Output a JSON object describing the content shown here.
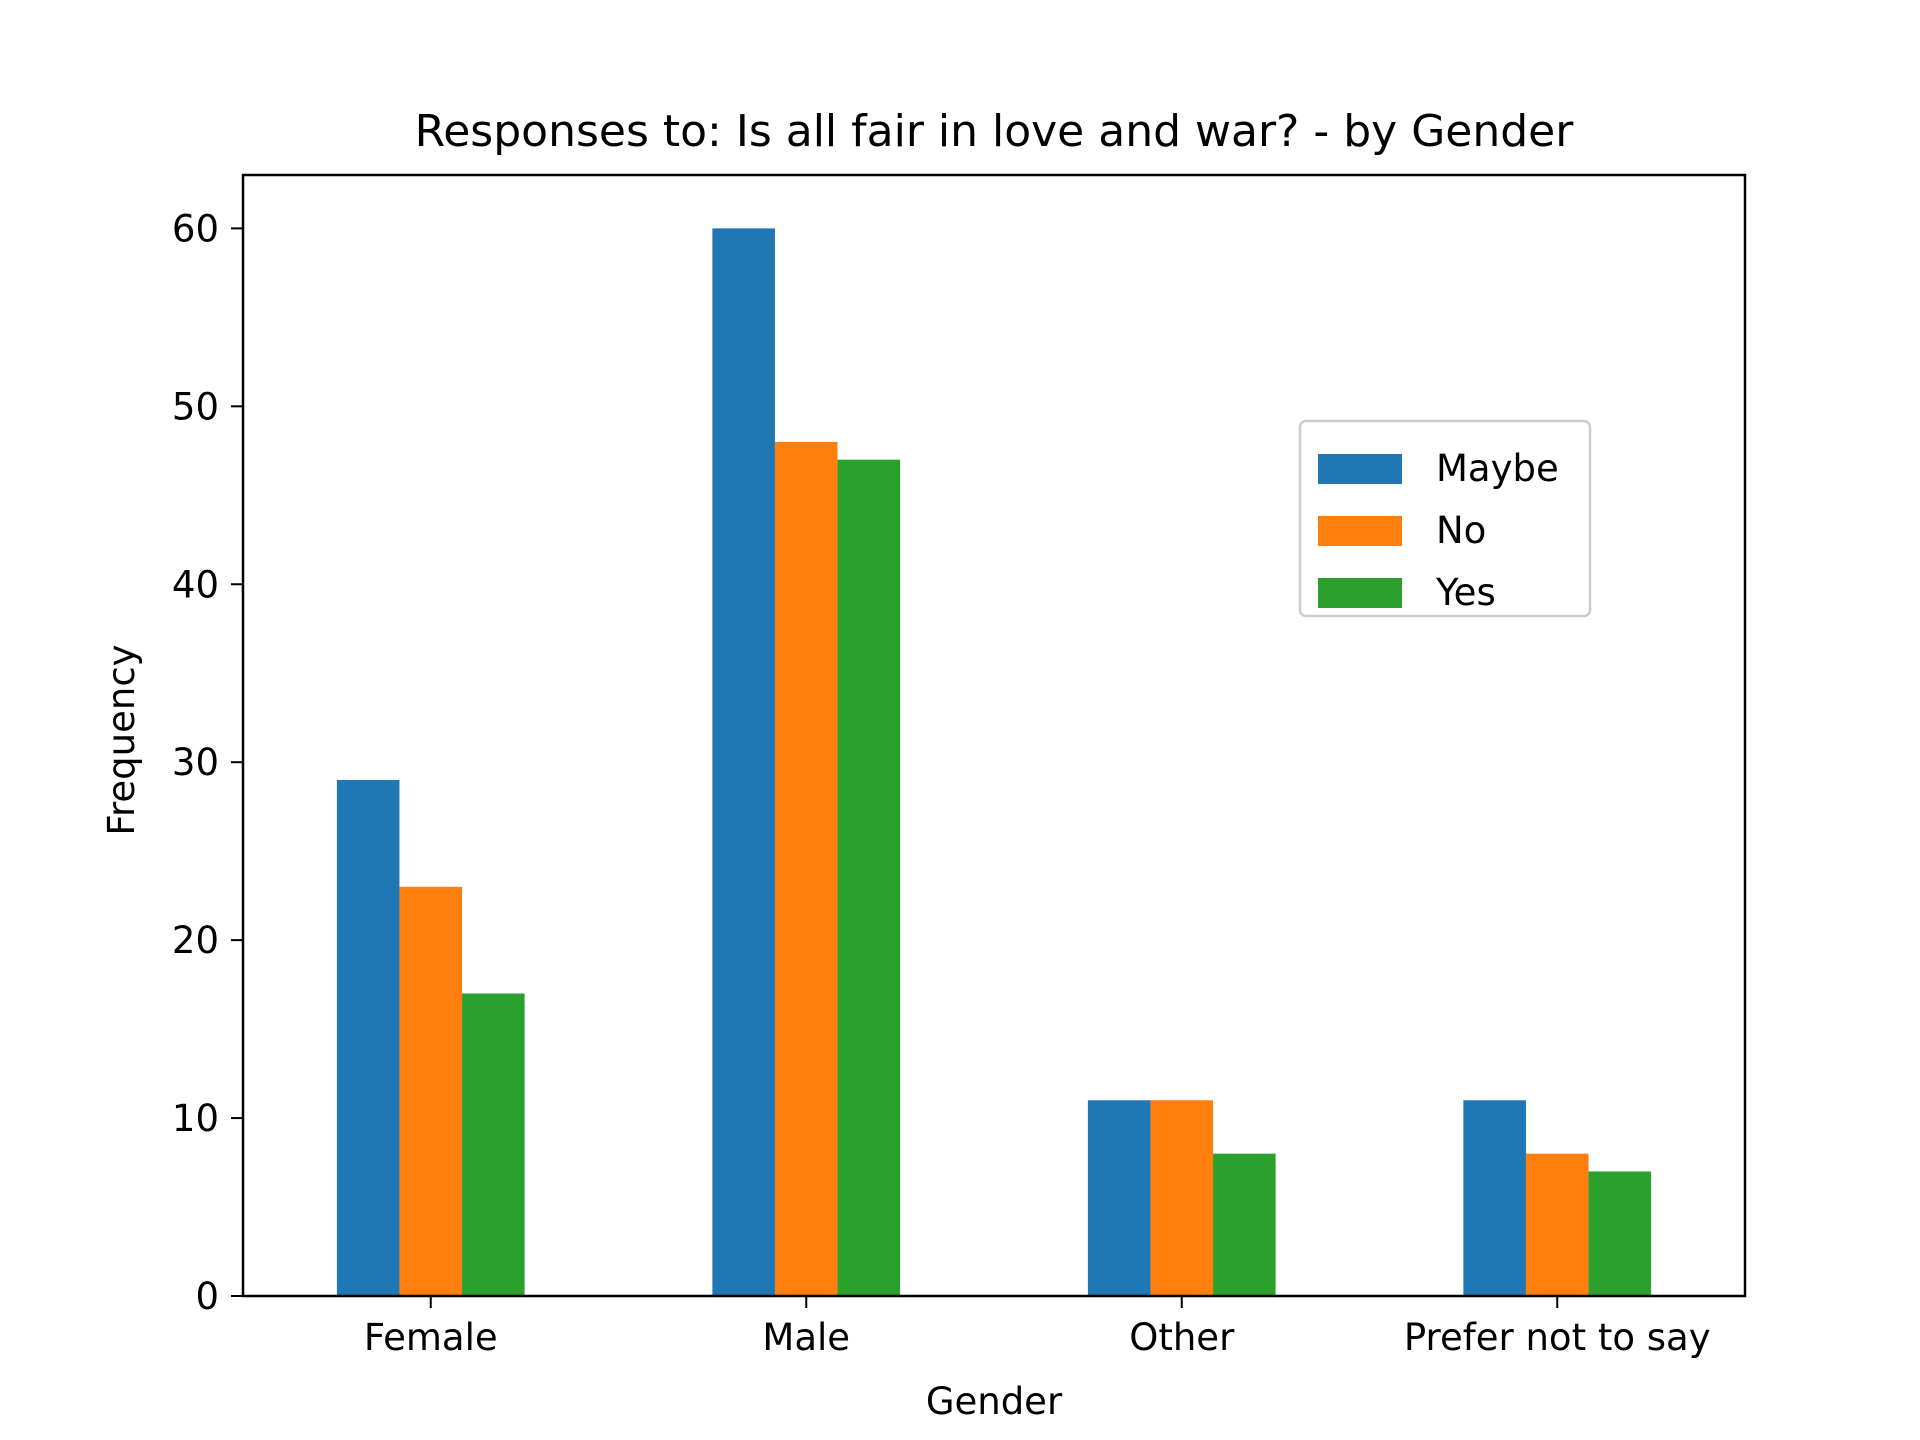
{
  "chart_data": {
    "type": "bar",
    "title": "Responses to: Is all fair in love and war? - by Gender",
    "xlabel": "Gender",
    "ylabel": "Frequency",
    "categories": [
      "Female",
      "Male",
      "Other",
      "Prefer not to say"
    ],
    "series": [
      {
        "name": "Maybe",
        "color": "#1f77b4",
        "values": [
          29,
          60,
          11,
          11
        ]
      },
      {
        "name": "No",
        "color": "#ff7f0e",
        "values": [
          23,
          48,
          11,
          8
        ]
      },
      {
        "name": "Yes",
        "color": "#2ca02c",
        "values": [
          17,
          47,
          8,
          7
        ]
      }
    ],
    "ylim": [
      0,
      63
    ],
    "yticks": [
      0,
      10,
      20,
      30,
      40,
      50,
      60
    ],
    "grid": false,
    "legend_position": "upper-right-inset"
  }
}
